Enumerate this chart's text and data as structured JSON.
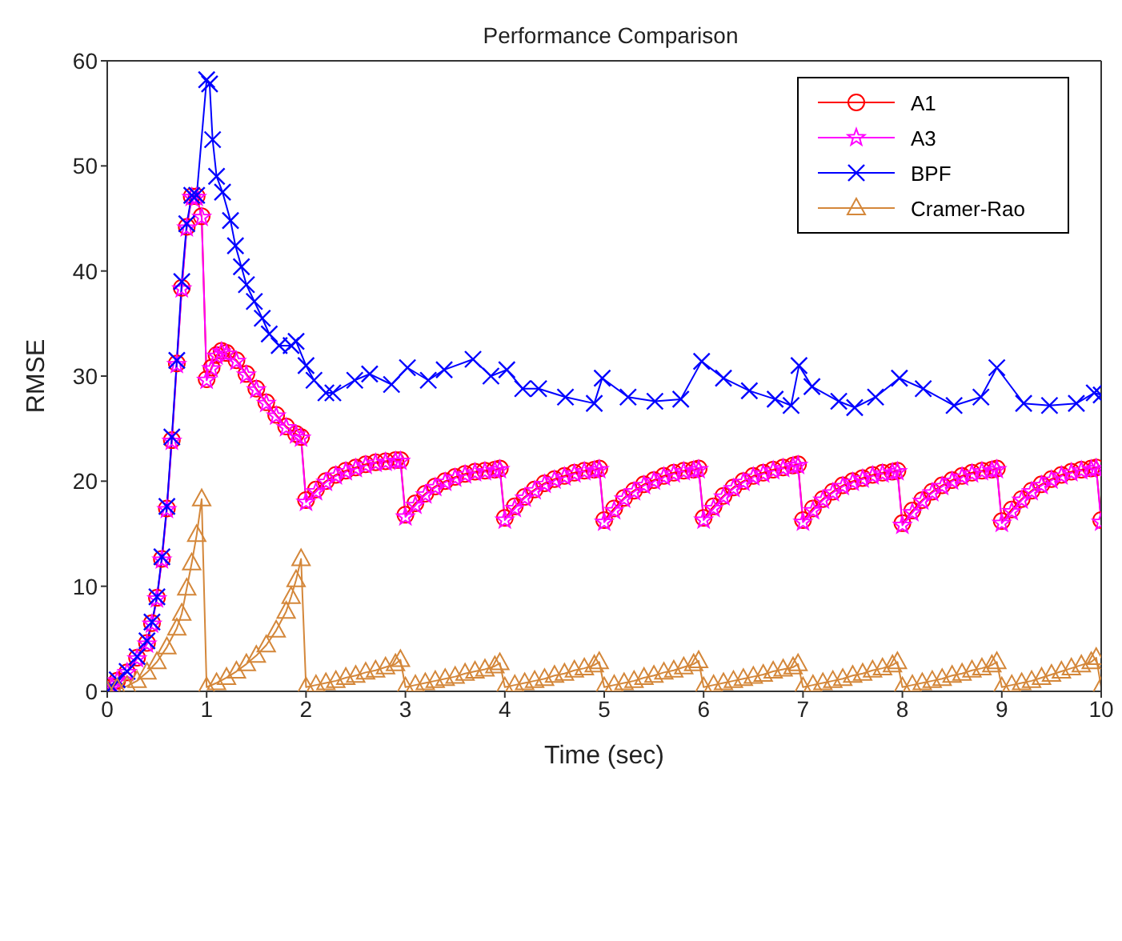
{
  "chart_data": {
    "type": "line",
    "title": "Performance Comparison",
    "xlabel": "Time (sec)",
    "ylabel": "RMSE",
    "xlim": [
      0,
      10
    ],
    "xticks": [
      0,
      1,
      2,
      3,
      4,
      5,
      6,
      7,
      8,
      9,
      10
    ],
    "ylim": [
      0,
      60
    ],
    "yticks": [
      0,
      10,
      20,
      30,
      40,
      50,
      60
    ],
    "legend": "top right",
    "line_style": "solid",
    "series": [
      {
        "name": "A1",
        "color": "#ff0000",
        "marker": "circle",
        "x": [
          0,
          0.05,
          0.1,
          0.2,
          0.3,
          0.4,
          0.45,
          0.5,
          0.55,
          0.6,
          0.65,
          0.7,
          0.75,
          0.8,
          0.85,
          0.9,
          0.95,
          1.0,
          1.05,
          1.1,
          1.15,
          1.2,
          1.3,
          1.4,
          1.5,
          1.6,
          1.7,
          1.8,
          1.9,
          1.95,
          2,
          2.1,
          2.2,
          2.3,
          2.4,
          2.5,
          2.6,
          2.7,
          2.8,
          2.9,
          2.95,
          3,
          3.1,
          3.2,
          3.3,
          3.4,
          3.5,
          3.6,
          3.7,
          3.8,
          3.9,
          3.95,
          4,
          4.1,
          4.2,
          4.3,
          4.4,
          4.5,
          4.6,
          4.7,
          4.8,
          4.9,
          4.95,
          5,
          5.1,
          5.2,
          5.3,
          5.4,
          5.5,
          5.6,
          5.7,
          5.8,
          5.9,
          5.95,
          6,
          6.1,
          6.2,
          6.3,
          6.4,
          6.5,
          6.6,
          6.7,
          6.8,
          6.9,
          6.95,
          7,
          7.1,
          7.2,
          7.3,
          7.4,
          7.5,
          7.6,
          7.7,
          7.8,
          7.9,
          7.95,
          8,
          8.1,
          8.2,
          8.3,
          8.4,
          8.5,
          8.6,
          8.7,
          8.8,
          8.9,
          8.95,
          9,
          9.1,
          9.2,
          9.3,
          9.4,
          9.5,
          9.6,
          9.7,
          9.8,
          9.9,
          9.95,
          10
        ],
        "values": [
          0,
          0.4,
          1.0,
          1.8,
          3.2,
          4.6,
          6.5,
          8.9,
          12.6,
          17.4,
          23.9,
          31.2,
          38.4,
          44.2,
          47.1,
          47.1,
          45.2,
          29.7,
          30.8,
          32.0,
          32.4,
          32.2,
          31.5,
          30.2,
          28.8,
          27.5,
          26.3,
          25.2,
          24.5,
          24.2,
          18.2,
          19.2,
          20.0,
          20.6,
          21.0,
          21.3,
          21.6,
          21.8,
          21.9,
          22.0,
          22.0,
          16.8,
          17.9,
          18.8,
          19.5,
          20.0,
          20.4,
          20.7,
          20.9,
          21.0,
          21.1,
          21.2,
          16.5,
          17.6,
          18.5,
          19.2,
          19.8,
          20.2,
          20.5,
          20.8,
          21.0,
          21.1,
          21.2,
          16.3,
          17.4,
          18.4,
          19.1,
          19.7,
          20.1,
          20.5,
          20.8,
          21.0,
          21.1,
          21.2,
          16.5,
          17.6,
          18.6,
          19.4,
          20.0,
          20.5,
          20.8,
          21.1,
          21.3,
          21.5,
          21.6,
          16.3,
          17.4,
          18.3,
          19.0,
          19.6,
          20.0,
          20.3,
          20.6,
          20.8,
          20.9,
          21.0,
          16.0,
          17.2,
          18.2,
          19.0,
          19.6,
          20.1,
          20.5,
          20.8,
          21.0,
          21.1,
          21.2,
          16.2,
          17.3,
          18.3,
          19.1,
          19.7,
          20.2,
          20.6,
          20.9,
          21.1,
          21.2,
          21.3,
          16.3
        ]
      },
      {
        "name": "A3",
        "color": "#ff00ff",
        "marker": "star",
        "x": [
          0,
          0.05,
          0.1,
          0.2,
          0.3,
          0.4,
          0.45,
          0.5,
          0.55,
          0.6,
          0.65,
          0.7,
          0.75,
          0.8,
          0.85,
          0.9,
          0.95,
          1.0,
          1.05,
          1.1,
          1.15,
          1.2,
          1.3,
          1.4,
          1.5,
          1.6,
          1.7,
          1.8,
          1.9,
          1.95,
          2,
          2.1,
          2.2,
          2.3,
          2.4,
          2.5,
          2.6,
          2.7,
          2.8,
          2.9,
          2.95,
          3,
          3.1,
          3.2,
          3.3,
          3.4,
          3.5,
          3.6,
          3.7,
          3.8,
          3.9,
          3.95,
          4,
          4.1,
          4.2,
          4.3,
          4.4,
          4.5,
          4.6,
          4.7,
          4.8,
          4.9,
          4.95,
          5,
          5.1,
          5.2,
          5.3,
          5.4,
          5.5,
          5.6,
          5.7,
          5.8,
          5.9,
          5.95,
          6,
          6.1,
          6.2,
          6.3,
          6.4,
          6.5,
          6.6,
          6.7,
          6.8,
          6.9,
          6.95,
          7,
          7.1,
          7.2,
          7.3,
          7.4,
          7.5,
          7.6,
          7.7,
          7.8,
          7.9,
          7.95,
          8,
          8.1,
          8.2,
          8.3,
          8.4,
          8.5,
          8.6,
          8.7,
          8.8,
          8.9,
          8.95,
          9,
          9.1,
          9.2,
          9.3,
          9.4,
          9.5,
          9.6,
          9.7,
          9.8,
          9.9,
          9.95,
          10
        ],
        "values": [
          0,
          0.4,
          1.0,
          1.8,
          3.1,
          4.5,
          6.4,
          8.8,
          12.5,
          17.3,
          23.8,
          31.1,
          38.3,
          44.1,
          47.0,
          47.0,
          45.1,
          29.6,
          30.7,
          31.9,
          32.3,
          32.1,
          31.4,
          30.1,
          28.7,
          27.4,
          26.2,
          25.1,
          24.4,
          24.1,
          18.0,
          19.0,
          19.9,
          20.5,
          20.9,
          21.2,
          21.5,
          21.7,
          21.8,
          21.9,
          21.9,
          16.6,
          17.7,
          18.7,
          19.4,
          19.9,
          20.3,
          20.6,
          20.8,
          20.9,
          21.0,
          21.1,
          16.3,
          17.4,
          18.4,
          19.1,
          19.7,
          20.1,
          20.4,
          20.7,
          20.9,
          21.0,
          21.1,
          16.1,
          17.2,
          18.3,
          19.0,
          19.6,
          20.0,
          20.4,
          20.7,
          20.9,
          21.0,
          21.1,
          16.3,
          17.4,
          18.5,
          19.3,
          19.9,
          20.4,
          20.7,
          21.0,
          21.2,
          21.4,
          21.5,
          16.1,
          17.2,
          18.2,
          18.9,
          19.5,
          19.9,
          20.2,
          20.5,
          20.7,
          20.8,
          20.9,
          15.8,
          17.0,
          18.1,
          18.9,
          19.5,
          20.0,
          20.4,
          20.7,
          20.9,
          21.0,
          21.1,
          16.0,
          17.1,
          18.2,
          19.0,
          19.6,
          20.1,
          20.5,
          20.8,
          21.0,
          21.1,
          21.2,
          16.1
        ]
      },
      {
        "name": "BPF",
        "color": "#0000ff",
        "marker": "cross",
        "x": [
          0,
          0.05,
          0.1,
          0.2,
          0.3,
          0.4,
          0.45,
          0.5,
          0.55,
          0.6,
          0.65,
          0.7,
          0.75,
          0.8,
          0.85,
          0.9,
          1.0,
          1.03,
          1.06,
          1.1,
          1.16,
          1.24,
          1.29,
          1.35,
          1.4,
          1.48,
          1.56,
          1.63,
          1.73,
          1.85,
          1.9,
          2.0,
          2.08,
          2.2,
          2.27,
          2.49,
          2.64,
          2.86,
          3.02,
          3.23,
          3.39,
          3.68,
          3.86,
          4.02,
          4.18,
          4.34,
          4.61,
          4.9,
          4.98,
          5.24,
          5.51,
          5.77,
          5.98,
          6.2,
          6.46,
          6.72,
          6.88,
          6.96,
          7.09,
          7.36,
          7.52,
          7.73,
          7.97,
          8.21,
          8.52,
          8.79,
          8.95,
          9.22,
          9.48,
          9.75,
          9.93,
          10
        ],
        "values": [
          0,
          0.4,
          1.1,
          1.9,
          3.3,
          4.8,
          6.6,
          9.0,
          12.8,
          17.6,
          24.2,
          31.5,
          39.0,
          44.5,
          47.2,
          47.2,
          58.2,
          57.8,
          52.5,
          49.0,
          47.5,
          44.8,
          42.4,
          40.4,
          38.7,
          37.1,
          35.5,
          34.0,
          32.9,
          32.9,
          33.3,
          31.0,
          29.6,
          28.4,
          28.4,
          29.6,
          30.2,
          29.2,
          30.8,
          29.6,
          30.6,
          31.6,
          30.0,
          30.6,
          28.8,
          28.8,
          28.0,
          27.4,
          29.8,
          28.0,
          27.6,
          27.8,
          31.4,
          29.8,
          28.6,
          27.8,
          27.2,
          31.0,
          29.0,
          27.6,
          27.0,
          28.0,
          29.8,
          28.8,
          27.2,
          28.0,
          30.8,
          27.4,
          27.2,
          27.4,
          28.4,
          28.2
        ]
      },
      {
        "name": "Cramer-Rao",
        "color": "#d4873a",
        "marker": "triangle",
        "x": [
          0,
          0.1,
          0.2,
          0.3,
          0.4,
          0.5,
          0.6,
          0.7,
          0.75,
          0.8,
          0.85,
          0.9,
          0.95,
          1.0,
          1.1,
          1.2,
          1.3,
          1.4,
          1.5,
          1.6,
          1.7,
          1.8,
          1.85,
          1.9,
          1.95,
          2,
          2.1,
          2.2,
          2.3,
          2.4,
          2.5,
          2.6,
          2.7,
          2.8,
          2.9,
          2.95,
          3,
          3.1,
          3.2,
          3.3,
          3.4,
          3.5,
          3.6,
          3.7,
          3.8,
          3.9,
          3.95,
          4,
          4.1,
          4.2,
          4.3,
          4.4,
          4.5,
          4.6,
          4.7,
          4.8,
          4.9,
          4.95,
          5,
          5.1,
          5.2,
          5.3,
          5.4,
          5.5,
          5.6,
          5.7,
          5.8,
          5.9,
          5.95,
          6,
          6.1,
          6.2,
          6.3,
          6.4,
          6.5,
          6.6,
          6.7,
          6.8,
          6.9,
          6.95,
          7,
          7.1,
          7.2,
          7.3,
          7.4,
          7.5,
          7.6,
          7.7,
          7.8,
          7.9,
          7.95,
          8,
          8.1,
          8.2,
          8.3,
          8.4,
          8.5,
          8.6,
          8.7,
          8.8,
          8.9,
          8.95,
          9,
          9.1,
          9.2,
          9.3,
          9.4,
          9.5,
          9.6,
          9.7,
          9.8,
          9.9,
          9.95,
          10
        ],
        "values": [
          0,
          0.3,
          0.5,
          1.0,
          1.8,
          2.8,
          4.2,
          6.0,
          7.4,
          9.8,
          12.2,
          14.9,
          18.3,
          0.4,
          0.8,
          1.3,
          1.9,
          2.6,
          3.4,
          4.4,
          5.8,
          7.6,
          9.0,
          10.6,
          12.6,
          0.4,
          0.6,
          0.8,
          1.0,
          1.3,
          1.5,
          1.8,
          2.0,
          2.3,
          2.6,
          3.0,
          0.4,
          0.6,
          0.8,
          1.0,
          1.2,
          1.4,
          1.7,
          1.9,
          2.1,
          2.4,
          2.7,
          0.4,
          0.6,
          0.8,
          1.0,
          1.2,
          1.5,
          1.7,
          2.0,
          2.2,
          2.5,
          2.8,
          0.4,
          0.6,
          0.8,
          1.0,
          1.3,
          1.5,
          1.8,
          2.0,
          2.3,
          2.6,
          2.9,
          0.4,
          0.6,
          0.8,
          1.0,
          1.2,
          1.4,
          1.6,
          1.9,
          2.1,
          2.3,
          2.6,
          0.4,
          0.6,
          0.8,
          1.0,
          1.2,
          1.5,
          1.7,
          2.0,
          2.2,
          2.5,
          2.8,
          0.4,
          0.6,
          0.8,
          1.0,
          1.2,
          1.5,
          1.7,
          2.0,
          2.2,
          2.5,
          2.8,
          0.4,
          0.6,
          0.8,
          1.0,
          1.3,
          1.6,
          1.9,
          2.2,
          2.5,
          2.8,
          3.2,
          0.4
        ]
      }
    ]
  }
}
